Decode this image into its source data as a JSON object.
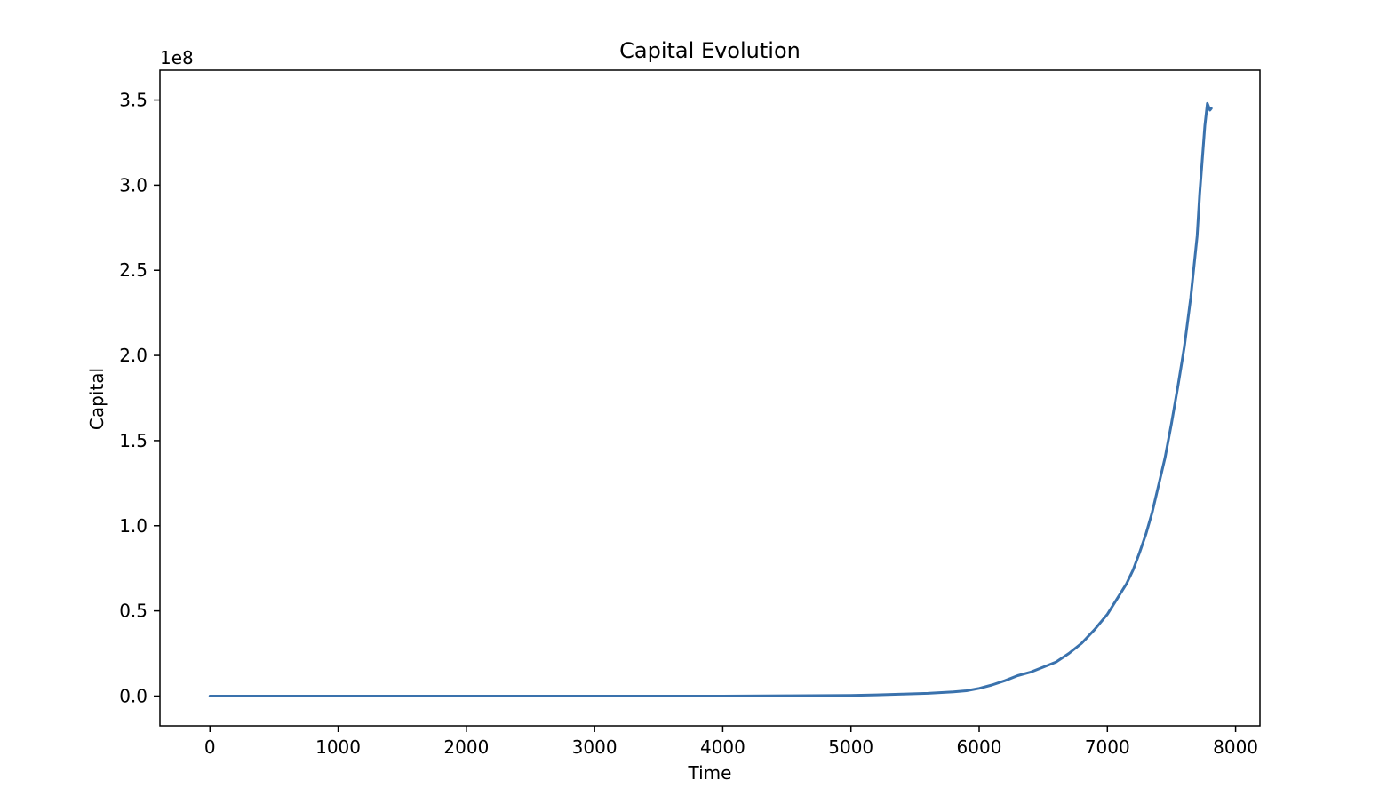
{
  "chart_data": {
    "type": "line",
    "title": "Capital Evolution",
    "xlabel": "Time",
    "ylabel": "Capital",
    "y_offset_text": "1e8",
    "xlim": [
      -390,
      8190
    ],
    "ylim": [
      -0.175,
      3.675
    ],
    "x_ticks": [
      0,
      1000,
      2000,
      3000,
      4000,
      5000,
      6000,
      7000,
      8000
    ],
    "y_ticks": [
      0.0,
      0.5,
      1.0,
      1.5,
      2.0,
      2.5,
      3.0,
      3.5
    ],
    "y_tick_labels": [
      "0.0",
      "0.5",
      "1.0",
      "1.5",
      "2.0",
      "2.5",
      "3.0",
      "3.5"
    ],
    "x_tick_labels": [
      "0",
      "1000",
      "2000",
      "3000",
      "4000",
      "5000",
      "6000",
      "7000",
      "8000"
    ],
    "grid": false,
    "series": [
      {
        "color": "#3a72ad",
        "x": [
          0,
          1000,
          2000,
          3000,
          4000,
          4500,
          5000,
          5200,
          5400,
          5600,
          5800,
          5900,
          6000,
          6100,
          6200,
          6300,
          6400,
          6500,
          6600,
          6700,
          6800,
          6900,
          7000,
          7050,
          7100,
          7150,
          7200,
          7250,
          7300,
          7350,
          7400,
          7450,
          7500,
          7550,
          7600,
          7650,
          7700,
          7720,
          7740,
          7760,
          7780,
          7790,
          7800,
          7810
        ],
        "y": [
          0.0,
          0.0,
          0.0,
          0.0,
          0.0,
          0.002,
          0.004,
          0.007,
          0.011,
          0.016,
          0.025,
          0.031,
          0.045,
          0.065,
          0.09,
          0.12,
          0.14,
          0.17,
          0.2,
          0.25,
          0.31,
          0.39,
          0.48,
          0.54,
          0.6,
          0.66,
          0.74,
          0.84,
          0.95,
          1.08,
          1.24,
          1.4,
          1.6,
          1.82,
          2.05,
          2.34,
          2.7,
          2.95,
          3.15,
          3.35,
          3.48,
          3.46,
          3.44,
          3.45
        ]
      }
    ]
  }
}
